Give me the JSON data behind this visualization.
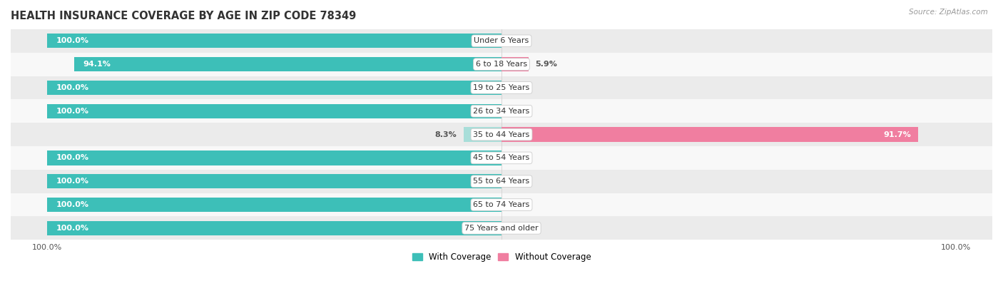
{
  "title": "HEALTH INSURANCE COVERAGE BY AGE IN ZIP CODE 78349",
  "source": "Source: ZipAtlas.com",
  "categories": [
    "Under 6 Years",
    "6 to 18 Years",
    "19 to 25 Years",
    "26 to 34 Years",
    "35 to 44 Years",
    "45 to 54 Years",
    "55 to 64 Years",
    "65 to 74 Years",
    "75 Years and older"
  ],
  "with_coverage": [
    100.0,
    94.1,
    100.0,
    100.0,
    8.3,
    100.0,
    100.0,
    100.0,
    100.0
  ],
  "without_coverage": [
    0.0,
    5.9,
    0.0,
    0.0,
    91.7,
    0.0,
    0.0,
    0.0,
    0.0
  ],
  "with_color": "#3DBFB8",
  "without_color": "#F07EA0",
  "with_color_light": "#A8DED9",
  "row_bg_even": "#EBEBEB",
  "row_bg_odd": "#F8F8F8",
  "title_fontsize": 10.5,
  "label_fontsize": 8.0,
  "tick_fontsize": 8.0,
  "legend_fontsize": 8.5,
  "source_fontsize": 7.5,
  "bar_height": 0.62,
  "legend_labels": [
    "With Coverage",
    "Without Coverage"
  ]
}
